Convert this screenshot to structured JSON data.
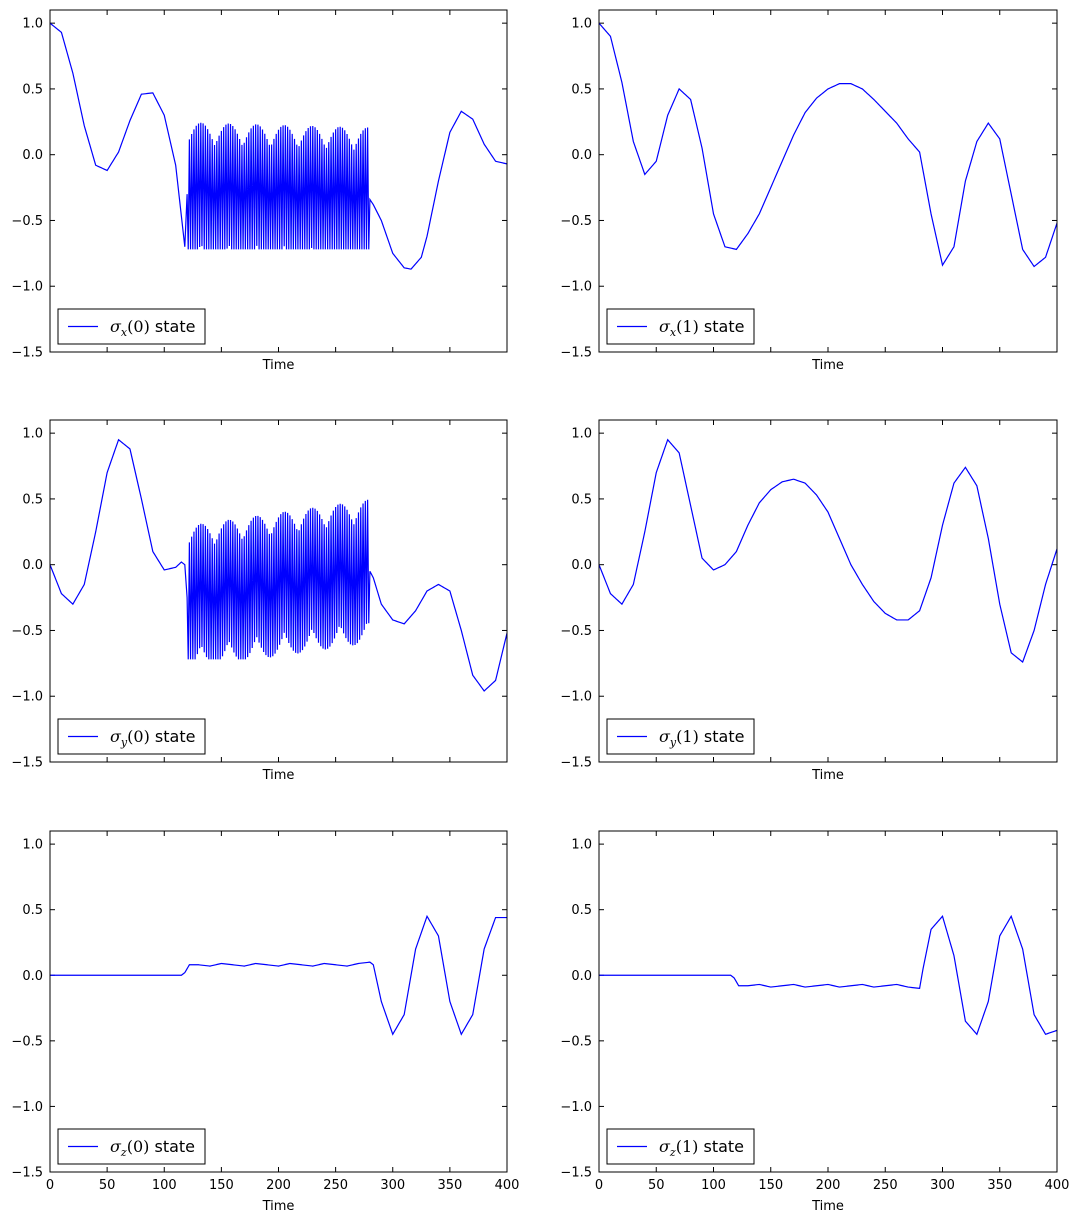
{
  "figure": {
    "xlim": [
      0,
      400
    ],
    "ylim": [
      -1.5,
      1.1
    ],
    "x_ticks": [
      0,
      50,
      100,
      150,
      200,
      250,
      300,
      350,
      400
    ],
    "y_ticks": [
      -1.5,
      -1.0,
      -0.5,
      0.0,
      0.5,
      1.0
    ],
    "y_tick_labels": [
      "−1.5",
      "−1.0",
      "−0.5",
      "0.0",
      "0.5",
      "1.0"
    ],
    "x_tick_labels": [
      "0",
      "50",
      "100",
      "150",
      "200",
      "250",
      "300",
      "350",
      "400"
    ],
    "line_color": "#0000ff"
  },
  "chart_data": [
    {
      "type": "line",
      "xlabel": "Time",
      "legend": {
        "symbol": "σ",
        "sub": "x",
        "arg": "(0)",
        "suffix": " state",
        "placement": "lower-left"
      },
      "series": [
        {
          "name": "σx(0) state",
          "color": "#0000ff",
          "oscillating_segment": [
            120,
            280
          ],
          "oscillation_amplitude": 0.9,
          "x": [
            0,
            10,
            20,
            30,
            40,
            50,
            60,
            70,
            80,
            90,
            100,
            110,
            118,
            120,
            280,
            283,
            290,
            300,
            310,
            316,
            325,
            330,
            340,
            350,
            360,
            370,
            380,
            390,
            400
          ],
          "y": [
            1.0,
            0.93,
            0.62,
            0.22,
            -0.08,
            -0.12,
            0.02,
            0.26,
            0.46,
            0.47,
            0.3,
            -0.08,
            -0.7,
            -0.3,
            -0.34,
            -0.38,
            -0.5,
            -0.75,
            -0.86,
            -0.87,
            -0.78,
            -0.62,
            -0.2,
            0.17,
            0.33,
            0.27,
            0.08,
            -0.05,
            -0.07
          ]
        }
      ],
      "ylim": [
        -1.5,
        1.1
      ],
      "xlim": [
        0,
        400
      ]
    },
    {
      "type": "line",
      "xlabel": "Time",
      "legend": {
        "symbol": "σ",
        "sub": "x",
        "arg": "(1)",
        "suffix": " state",
        "placement": "lower-left"
      },
      "series": [
        {
          "name": "σx(1) state",
          "color": "#0000ff",
          "x": [
            0,
            10,
            20,
            30,
            40,
            50,
            60,
            70,
            80,
            90,
            100,
            110,
            120,
            130,
            140,
            150,
            160,
            170,
            180,
            190,
            200,
            210,
            220,
            230,
            240,
            250,
            260,
            270,
            280,
            290,
            300,
            310,
            320,
            330,
            340,
            350,
            360,
            370,
            380,
            390,
            400
          ],
          "y": [
            1.0,
            0.9,
            0.55,
            0.1,
            -0.15,
            -0.05,
            0.3,
            0.5,
            0.42,
            0.05,
            -0.45,
            -0.7,
            -0.72,
            -0.6,
            -0.45,
            -0.25,
            -0.05,
            0.15,
            0.32,
            0.43,
            0.5,
            0.54,
            0.54,
            0.5,
            0.42,
            0.33,
            0.24,
            0.12,
            0.02,
            -0.45,
            -0.84,
            -0.7,
            -0.2,
            0.1,
            0.24,
            0.12,
            -0.3,
            -0.72,
            -0.85,
            -0.78,
            -0.52
          ]
        }
      ],
      "ylim": [
        -1.5,
        1.1
      ],
      "xlim": [
        0,
        400
      ]
    },
    {
      "type": "line",
      "xlabel": "Time",
      "legend": {
        "symbol": "σ",
        "sub": "y",
        "arg": "(0)",
        "suffix": " state",
        "placement": "lower-left"
      },
      "series": [
        {
          "name": "σy(0) state",
          "color": "#0000ff",
          "oscillating_segment": [
            120,
            280
          ],
          "oscillation_amplitude": 0.9,
          "x": [
            0,
            10,
            20,
            30,
            40,
            50,
            60,
            70,
            80,
            90,
            100,
            110,
            115,
            118,
            120,
            280,
            283,
            290,
            300,
            310,
            320,
            330,
            340,
            350,
            360,
            370,
            380,
            390,
            400
          ],
          "y": [
            0.0,
            -0.22,
            -0.3,
            -0.15,
            0.25,
            0.7,
            0.95,
            0.88,
            0.5,
            0.1,
            -0.04,
            -0.02,
            0.02,
            0.0,
            -0.25,
            -0.05,
            -0.1,
            -0.3,
            -0.42,
            -0.45,
            -0.35,
            -0.2,
            -0.15,
            -0.2,
            -0.5,
            -0.84,
            -0.96,
            -0.88,
            -0.52
          ]
        }
      ],
      "ylim": [
        -1.5,
        1.1
      ],
      "xlim": [
        0,
        400
      ]
    },
    {
      "type": "line",
      "xlabel": "Time",
      "legend": {
        "symbol": "σ",
        "sub": "y",
        "arg": "(1)",
        "suffix": " state",
        "placement": "lower-left"
      },
      "series": [
        {
          "name": "σy(1) state",
          "color": "#0000ff",
          "x": [
            0,
            10,
            20,
            30,
            40,
            50,
            60,
            70,
            80,
            90,
            100,
            110,
            120,
            130,
            140,
            150,
            160,
            170,
            180,
            190,
            200,
            210,
            220,
            230,
            240,
            250,
            260,
            270,
            280,
            290,
            300,
            310,
            320,
            330,
            340,
            350,
            360,
            370,
            380,
            390,
            400
          ],
          "y": [
            0.0,
            -0.22,
            -0.3,
            -0.15,
            0.25,
            0.7,
            0.95,
            0.85,
            0.45,
            0.05,
            -0.04,
            0.0,
            0.1,
            0.3,
            0.47,
            0.57,
            0.63,
            0.65,
            0.62,
            0.53,
            0.4,
            0.2,
            0.0,
            -0.15,
            -0.28,
            -0.37,
            -0.42,
            -0.42,
            -0.35,
            -0.1,
            0.3,
            0.62,
            0.74,
            0.6,
            0.2,
            -0.3,
            -0.67,
            -0.74,
            -0.5,
            -0.15,
            0.12
          ]
        }
      ],
      "ylim": [
        -1.5,
        1.1
      ],
      "xlim": [
        0,
        400
      ]
    },
    {
      "type": "line",
      "xlabel": "Time",
      "legend": {
        "symbol": "σ",
        "sub": "z",
        "arg": "(0)",
        "suffix": " state",
        "placement": "lower-left"
      },
      "series": [
        {
          "name": "σz(0) state",
          "color": "#0000ff",
          "x": [
            0,
            115,
            118,
            122,
            130,
            140,
            150,
            160,
            170,
            180,
            190,
            200,
            210,
            220,
            230,
            240,
            250,
            260,
            270,
            280,
            283,
            290,
            300,
            310,
            320,
            330,
            340,
            350,
            360,
            370,
            380,
            390,
            400
          ],
          "y": [
            0.0,
            0.0,
            0.02,
            0.08,
            0.08,
            0.07,
            0.09,
            0.08,
            0.07,
            0.09,
            0.08,
            0.07,
            0.09,
            0.08,
            0.07,
            0.09,
            0.08,
            0.07,
            0.09,
            0.1,
            0.08,
            -0.2,
            -0.45,
            -0.3,
            0.2,
            0.45,
            0.3,
            -0.2,
            -0.45,
            -0.3,
            0.2,
            0.44,
            0.44
          ]
        }
      ],
      "ylim": [
        -1.5,
        1.1
      ],
      "xlim": [
        0,
        400
      ]
    },
    {
      "type": "line",
      "xlabel": "Time",
      "legend": {
        "symbol": "σ",
        "sub": "z",
        "arg": "(1)",
        "suffix": " state",
        "placement": "lower-left"
      },
      "series": [
        {
          "name": "σz(1) state",
          "color": "#0000ff",
          "x": [
            0,
            115,
            118,
            122,
            130,
            140,
            150,
            160,
            170,
            180,
            190,
            200,
            210,
            220,
            230,
            240,
            250,
            260,
            270,
            280,
            283,
            290,
            300,
            310,
            320,
            330,
            340,
            350,
            360,
            370,
            380,
            390,
            400
          ],
          "y": [
            0.0,
            0.0,
            -0.02,
            -0.08,
            -0.08,
            -0.07,
            -0.09,
            -0.08,
            -0.07,
            -0.09,
            -0.08,
            -0.07,
            -0.09,
            -0.08,
            -0.07,
            -0.09,
            -0.08,
            -0.07,
            -0.09,
            -0.1,
            0.05,
            0.35,
            0.45,
            0.15,
            -0.35,
            -0.45,
            -0.2,
            0.3,
            0.45,
            0.2,
            -0.3,
            -0.45,
            -0.42
          ]
        }
      ],
      "ylim": [
        -1.5,
        1.1
      ],
      "xlim": [
        0,
        400
      ]
    }
  ]
}
